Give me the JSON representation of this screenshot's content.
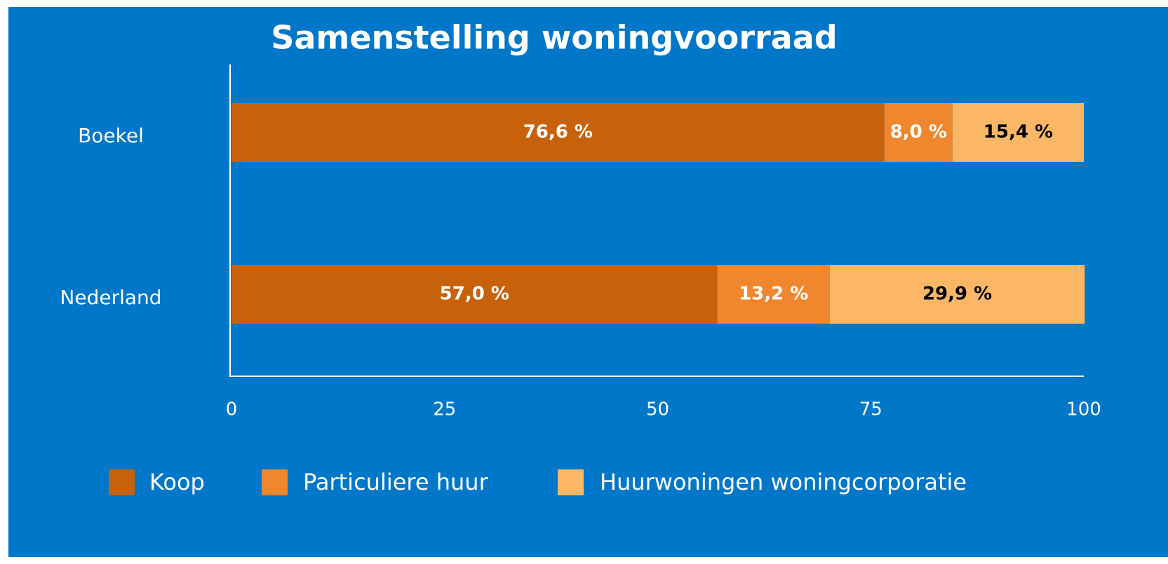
{
  "chart_data": {
    "type": "stacked_barh",
    "title": "Samenstelling woningvoorraad",
    "categories": [
      "Boekel",
      "Nederland"
    ],
    "series": [
      {
        "name": "Koop",
        "color": "#c8620a",
        "label_color": "#ffffff",
        "values": [
          76.6,
          57.0
        ],
        "value_labels": [
          "76,6 %",
          "57,0 %"
        ]
      },
      {
        "name": "Particuliere huur",
        "color": "#f0862e",
        "label_color": "#ffffff",
        "values": [
          8.0,
          13.2
        ],
        "value_labels": [
          "8,0 %",
          "13,2 %"
        ]
      },
      {
        "name": "Huurwoningen woningcorporatie",
        "color": "#fbb666",
        "label_color": "#000000",
        "values": [
          15.4,
          29.9
        ],
        "value_labels": [
          "15,4 %",
          "29,9 %"
        ]
      }
    ],
    "xlim": [
      0,
      100
    ],
    "xticks": [
      0,
      25,
      50,
      75,
      100
    ],
    "grid": false,
    "legend": "bottom"
  }
}
